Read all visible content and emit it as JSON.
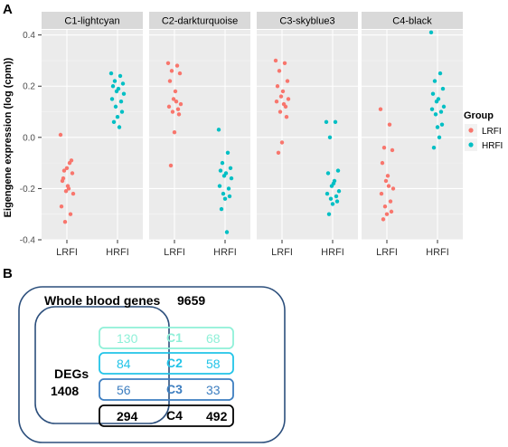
{
  "panel_a_letter": "A",
  "panel_b_letter": "B",
  "chart_data": {
    "type": "scatter",
    "ylabel": "Eigengene expression (log (cpm))",
    "ylim": [
      -0.4,
      0.42
    ],
    "yticks": [
      "0.4",
      "0.2",
      "0.0",
      "-0.2",
      "-0.4"
    ],
    "ytick_values": [
      0.4,
      0.2,
      0.0,
      -0.2,
      -0.4
    ],
    "categories": [
      "LRFI",
      "HRFI"
    ],
    "facets": [
      "C1-lightcyan",
      "C2-darkturquoise",
      "C3-skyblue3",
      "C4-black"
    ],
    "grid": true,
    "legend": {
      "title": "Group",
      "position": "right",
      "entries": [
        {
          "label": "LRFI",
          "color": "#F8766D"
        },
        {
          "label": "HRFI",
          "color": "#00BFC4"
        }
      ]
    },
    "series": [
      {
        "name": "LRFI",
        "color": "#F8766D",
        "values": [
          [
            0.01,
            -0.1,
            -0.13,
            -0.14,
            -0.17,
            -0.19,
            -0.21,
            -0.22,
            -0.27,
            -0.3,
            -0.33,
            -0.09,
            -0.12,
            -0.16,
            -0.2
          ],
          [
            0.29,
            0.28,
            0.26,
            0.25,
            0.22,
            0.18,
            0.15,
            0.13,
            0.12,
            0.11,
            0.1,
            0.09,
            0.02,
            -0.11,
            0.14
          ],
          [
            0.3,
            0.29,
            0.26,
            0.22,
            0.2,
            0.18,
            0.16,
            0.15,
            0.14,
            0.12,
            0.1,
            0.08,
            -0.02,
            -0.06,
            0.13
          ],
          [
            0.11,
            0.05,
            -0.04,
            -0.05,
            -0.1,
            -0.15,
            -0.17,
            -0.2,
            -0.22,
            -0.25,
            -0.27,
            -0.29,
            -0.3,
            -0.32,
            -0.19
          ]
        ]
      },
      {
        "name": "HRFI",
        "color": "#00BFC4",
        "values": [
          [
            0.25,
            0.24,
            0.22,
            0.21,
            0.2,
            0.19,
            0.18,
            0.17,
            0.15,
            0.14,
            0.12,
            0.1,
            0.08,
            0.06,
            0.04
          ],
          [
            0.03,
            -0.06,
            -0.1,
            -0.12,
            -0.13,
            -0.14,
            -0.15,
            -0.16,
            -0.19,
            -0.2,
            -0.22,
            -0.23,
            -0.24,
            -0.28,
            -0.37
          ],
          [
            0.06,
            0.06,
            0.0,
            -0.13,
            -0.14,
            -0.18,
            -0.19,
            -0.21,
            -0.22,
            -0.23,
            -0.24,
            -0.25,
            -0.26,
            -0.3,
            -0.17
          ],
          [
            0.41,
            0.25,
            0.22,
            0.19,
            0.17,
            0.15,
            0.14,
            0.12,
            0.11,
            0.1,
            0.09,
            0.05,
            0.04,
            -0.04,
            0.0
          ]
        ]
      }
    ]
  },
  "venn": {
    "outer_label": "Whole blood genes",
    "outer_count": "9659",
    "inner_label": "DEGs",
    "inner_count": "1408",
    "rows": [
      {
        "module": "C1",
        "left": "130",
        "right": "68",
        "color": "#8ff0d8"
      },
      {
        "module": "C2",
        "left": "84",
        "right": "58",
        "color": "#22c4e8"
      },
      {
        "module": "C3",
        "left": "56",
        "right": "33",
        "color": "#3d7ec0"
      },
      {
        "module": "C4",
        "left": "294",
        "right": "492",
        "color": "#000000"
      }
    ],
    "outer_color": "#2c4f7c",
    "inner_color": "#2c4f7c"
  }
}
